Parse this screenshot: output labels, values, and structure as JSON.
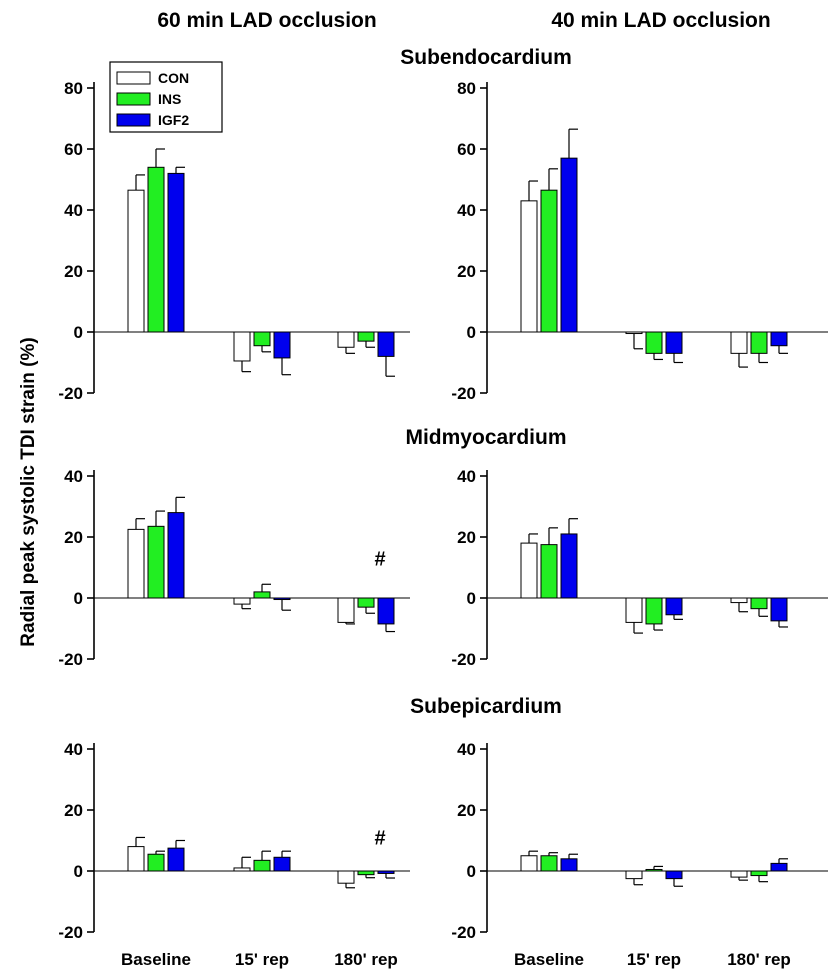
{
  "figure": {
    "column_titles": [
      "60 min LAD occlusion",
      "40 min LAD occlusion"
    ],
    "ylabel": "Radial peak systolic TDI strain (%)"
  },
  "colors": {
    "CON": "#ffffff",
    "INS": "#22ee22",
    "IGF2": "#0000ee"
  },
  "chart_data": [
    {
      "type": "bar",
      "row_title": "Subendocardium",
      "column_title": "60 min LAD occlusion",
      "categories": [
        "Baseline",
        "15' rep",
        "180' rep"
      ],
      "series": [
        {
          "name": "CON",
          "values": [
            46.5,
            -9.5,
            -5
          ],
          "errors": [
            5,
            3.5,
            2
          ]
        },
        {
          "name": "INS",
          "values": [
            54,
            -4.5,
            -3
          ],
          "errors": [
            6,
            2,
            2
          ]
        },
        {
          "name": "IGF2",
          "values": [
            52,
            -8.5,
            -8
          ],
          "errors": [
            2,
            5.5,
            6.5
          ]
        }
      ],
      "ylim": [
        -20,
        80
      ],
      "yticks": [
        "-20",
        "0",
        "20",
        "40",
        "60",
        "80"
      ],
      "annotations": []
    },
    {
      "type": "bar",
      "row_title": "",
      "column_title": "40 min LAD occlusion",
      "categories": [
        "Baseline",
        "15' rep",
        "180' rep"
      ],
      "series": [
        {
          "name": "CON",
          "values": [
            43,
            -0.5,
            -7
          ],
          "errors": [
            6.5,
            5,
            4.5
          ]
        },
        {
          "name": "INS",
          "values": [
            46.5,
            -7,
            -7
          ],
          "errors": [
            7,
            2,
            3
          ]
        },
        {
          "name": "IGF2",
          "values": [
            57,
            -7,
            -4.5
          ],
          "errors": [
            9.5,
            3,
            2.5
          ]
        }
      ],
      "ylim": [
        -20,
        80
      ],
      "yticks": [
        "-20",
        "0",
        "20",
        "40",
        "60",
        "80"
      ],
      "annotations": []
    },
    {
      "type": "bar",
      "row_title": "Midmyocardium",
      "column_title": "60 min LAD occlusion",
      "categories": [
        "Baseline",
        "15' rep",
        "180' rep"
      ],
      "series": [
        {
          "name": "CON",
          "values": [
            22.5,
            -2,
            -8
          ],
          "errors": [
            3.5,
            1.5,
            0.5
          ]
        },
        {
          "name": "INS",
          "values": [
            23.5,
            2,
            -3
          ],
          "errors": [
            5,
            2.5,
            2
          ]
        },
        {
          "name": "IGF2",
          "values": [
            28,
            -0.5,
            -8.5
          ],
          "errors": [
            5,
            3.5,
            2.5
          ]
        }
      ],
      "ylim": [
        -20,
        40
      ],
      "yticks": [
        "-20",
        "0",
        "20",
        "40"
      ],
      "annotations": [
        {
          "text": "#",
          "category": "180' rep",
          "y": 13
        }
      ]
    },
    {
      "type": "bar",
      "row_title": "",
      "column_title": "40 min LAD occlusion",
      "categories": [
        "Baseline",
        "15' rep",
        "180' rep"
      ],
      "series": [
        {
          "name": "CON",
          "values": [
            18,
            -8,
            -1.5
          ],
          "errors": [
            3,
            3.5,
            3
          ]
        },
        {
          "name": "INS",
          "values": [
            17.5,
            -8.5,
            -3.5
          ],
          "errors": [
            5.5,
            2,
            2.5
          ]
        },
        {
          "name": "IGF2",
          "values": [
            21,
            -5.5,
            -7.5
          ],
          "errors": [
            5,
            1.5,
            2
          ]
        }
      ],
      "ylim": [
        -20,
        40
      ],
      "yticks": [
        "-20",
        "0",
        "20",
        "40"
      ],
      "annotations": []
    },
    {
      "type": "bar",
      "row_title": "Subepicardium",
      "column_title": "60 min LAD occlusion",
      "categories": [
        "Baseline",
        "15' rep",
        "180' rep"
      ],
      "series": [
        {
          "name": "CON",
          "values": [
            8,
            1,
            -4
          ],
          "errors": [
            3,
            3.5,
            1.5
          ]
        },
        {
          "name": "INS",
          "values": [
            5.5,
            3.5,
            -1.2
          ],
          "errors": [
            1,
            3,
            1
          ]
        },
        {
          "name": "IGF2",
          "values": [
            7.5,
            4.5,
            -0.8
          ],
          "errors": [
            2.5,
            2,
            1.5
          ]
        }
      ],
      "ylim": [
        -20,
        40
      ],
      "yticks": [
        "-20",
        "0",
        "20",
        "40"
      ],
      "annotations": [
        {
          "text": "#",
          "category": "180' rep",
          "y": 11
        }
      ]
    },
    {
      "type": "bar",
      "row_title": "",
      "column_title": "40 min LAD occlusion",
      "categories": [
        "Baseline",
        "15' rep",
        "180' rep"
      ],
      "series": [
        {
          "name": "CON",
          "values": [
            5,
            -2.5,
            -2
          ],
          "errors": [
            1.5,
            2,
            1
          ]
        },
        {
          "name": "INS",
          "values": [
            5,
            0.5,
            -1.5
          ],
          "errors": [
            1,
            1,
            2
          ]
        },
        {
          "name": "IGF2",
          "values": [
            4,
            -2.5,
            2.5
          ],
          "errors": [
            1.5,
            2.5,
            1.5
          ]
        }
      ],
      "ylim": [
        -20,
        40
      ],
      "yticks": [
        "-20",
        "0",
        "20",
        "40"
      ],
      "annotations": []
    }
  ],
  "legend": {
    "entries": [
      "CON",
      "INS",
      "IGF2"
    ],
    "placement": "top-left"
  }
}
